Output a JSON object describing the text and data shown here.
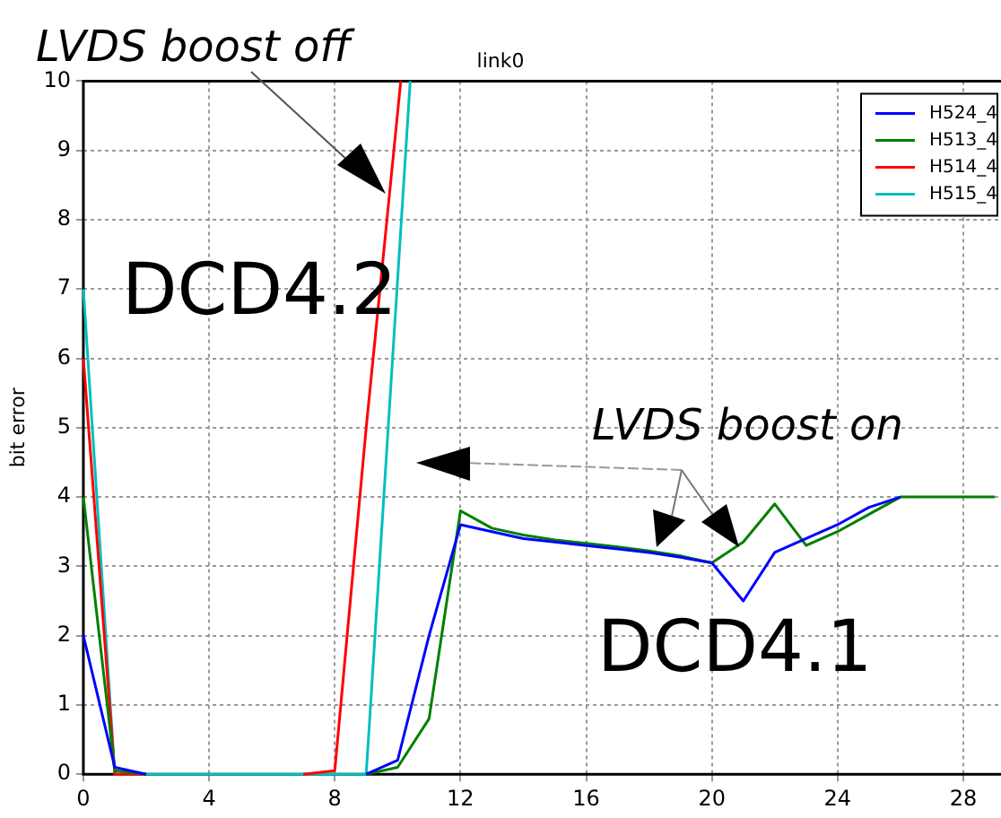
{
  "chart_data": {
    "type": "line",
    "title": "link0",
    "ylabel": "bit error",
    "x": [
      0,
      1,
      2,
      3,
      4,
      5,
      6,
      7,
      8,
      9,
      10,
      11,
      12,
      13,
      14,
      15,
      16,
      17,
      18,
      19,
      20,
      21,
      22,
      23,
      24,
      25,
      26,
      27,
      28,
      29
    ],
    "series": [
      {
        "name": "H524_4",
        "color": "#0000ff",
        "values": [
          2,
          0.1,
          0,
          null,
          null,
          null,
          null,
          null,
          null,
          0,
          0.2,
          2,
          3.6,
          3.5,
          3.4,
          3.35,
          3.3,
          3.25,
          3.2,
          3.13,
          3.05,
          2.5,
          3.2,
          3.4,
          3.6,
          3.85,
          4,
          null,
          null,
          null
        ]
      },
      {
        "name": "H513_4",
        "color": "#008000",
        "values": [
          4,
          0.05,
          0,
          null,
          null,
          null,
          null,
          null,
          null,
          0,
          0.1,
          0.8,
          3.8,
          3.55,
          3.45,
          3.38,
          3.33,
          3.28,
          3.22,
          3.15,
          3.05,
          3.35,
          3.9,
          3.3,
          3.5,
          3.75,
          4,
          4,
          4,
          4
        ]
      },
      {
        "name": "H514_4",
        "color": "#ff0000",
        "x": [
          0,
          1,
          2,
          3,
          4,
          5,
          6,
          7,
          8,
          9,
          10.1
        ],
        "values": [
          6,
          0,
          0,
          null,
          null,
          null,
          null,
          0,
          0.05,
          5,
          10
        ]
      },
      {
        "name": "H515_4",
        "color": "#00bfbf",
        "x": [
          0,
          1,
          2,
          3,
          4,
          5,
          6,
          7,
          8,
          9,
          10.4
        ],
        "values": [
          7,
          0,
          0,
          0,
          0,
          0,
          0,
          0,
          0,
          0,
          10
        ]
      }
    ],
    "xlim": [
      0,
      29.2
    ],
    "xticks": [
      0,
      4,
      8,
      12,
      16,
      20,
      24,
      28
    ],
    "ylim": [
      0,
      10
    ],
    "yticks": [
      0,
      1,
      2,
      3,
      4,
      5,
      6,
      7,
      8,
      9,
      10
    ],
    "grid": true,
    "legend": "top right",
    "marker": "none",
    "line_style": "solid",
    "annotations": [
      "LVDS boost off",
      "DCD4.2",
      "LVDS boost on",
      "DCD4.1"
    ]
  }
}
